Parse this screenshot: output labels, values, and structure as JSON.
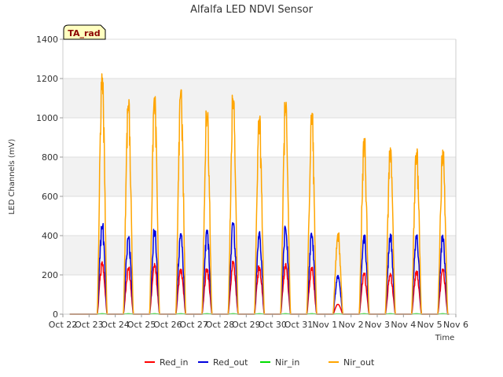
{
  "chart_data": {
    "type": "line",
    "title": "Alfalfa LED NDVI Sensor",
    "xlabel": "Time",
    "ylabel": "LED Channels (mV)",
    "ylim": [
      0,
      1400
    ],
    "yticks": [
      0,
      200,
      400,
      600,
      800,
      1000,
      1200,
      1400
    ],
    "xticks": [
      "Oct 22",
      "Oct 23",
      "Oct 24",
      "Oct 25",
      "Oct 26",
      "Oct 27",
      "Oct 28",
      "Oct 29",
      "Oct 30",
      "Oct 31",
      "Nov 1",
      "Nov 2",
      "Nov 3",
      "Nov 4",
      "Nov 5",
      "Nov 6"
    ],
    "grid": "horizontal bands",
    "legend_position": "bottom",
    "badge": "TA_rad",
    "day_centers": [
      0.5,
      1.5,
      2.5,
      3.5,
      4.5,
      5.5,
      6.5,
      7.5,
      8.5,
      9.5,
      10.5,
      11.5,
      12.5,
      13.5,
      14.5
    ],
    "series": [
      {
        "name": "Red_in",
        "color": "#ff0000",
        "daily_peaks": [
          0,
          270,
          240,
          260,
          230,
          240,
          270,
          250,
          260,
          240,
          50,
          210,
          210,
          220,
          230
        ]
      },
      {
        "name": "Red_out",
        "color": "#0000dd",
        "daily_peaks": [
          0,
          470,
          410,
          440,
          420,
          440,
          480,
          425,
          450,
          420,
          200,
          410,
          410,
          410,
          405
        ]
      },
      {
        "name": "Nir_in",
        "color": "#00dd00",
        "daily_peaks": [
          0,
          2,
          2,
          2,
          2,
          2,
          2,
          2,
          2,
          2,
          1,
          2,
          2,
          2,
          2
        ]
      },
      {
        "name": "Nir_out",
        "color": "#ffa500",
        "daily_peaks": [
          0,
          1250,
          1110,
          1150,
          1165,
          1075,
          1115,
          1010,
          1080,
          1045,
          415,
          905,
          860,
          860,
          855
        ]
      }
    ]
  }
}
